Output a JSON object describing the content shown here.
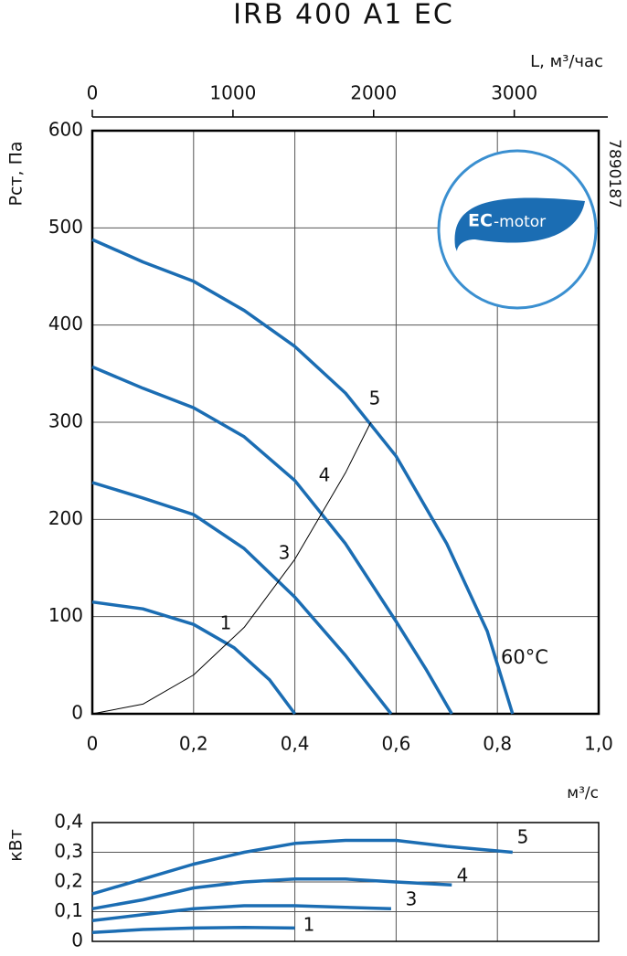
{
  "title": "IRB 400 A1 EC",
  "logo": [
    "EC",
    "-motor"
  ],
  "code": "7890187",
  "chart_data": [
    {
      "type": "line",
      "y_label": "Pст, Па",
      "x_label": "м³/с",
      "x2_label": "L, м³/час",
      "annotations": [
        "60°C"
      ],
      "xlim": [
        0,
        1.0
      ],
      "xticks": [
        0,
        {
          "value": 0.2,
          "label": "0,2"
        },
        {
          "value": 0.4,
          "label": "0,4"
        },
        {
          "value": 0.6,
          "label": "0,6"
        },
        {
          "value": 0.8,
          "label": "0,8"
        },
        {
          "value": 1.0,
          "label": "1,0"
        }
      ],
      "x2lim": [
        0,
        3600
      ],
      "x2ticks": [
        0,
        1000,
        2000,
        3000
      ],
      "ylim": [
        0,
        600
      ],
      "yticks": [
        0,
        100,
        200,
        300,
        400,
        500,
        600
      ],
      "grid": true,
      "series": [
        {
          "name": "1",
          "color": "#1b6db3",
          "x": [
            0,
            0.1,
            0.2,
            0.28,
            0.35,
            0.4
          ],
          "values": [
            115,
            108,
            92,
            68,
            35,
            0
          ]
        },
        {
          "name": "3",
          "color": "#1b6db3",
          "x": [
            0,
            0.1,
            0.2,
            0.3,
            0.4,
            0.5,
            0.59
          ],
          "values": [
            238,
            222,
            205,
            170,
            120,
            60,
            0
          ]
        },
        {
          "name": "4",
          "color": "#1b6db3",
          "x": [
            0,
            0.1,
            0.2,
            0.3,
            0.4,
            0.5,
            0.6,
            0.66,
            0.71
          ],
          "values": [
            357,
            335,
            315,
            285,
            240,
            175,
            95,
            45,
            0
          ]
        },
        {
          "name": "5",
          "color": "#1b6db3",
          "x": [
            0,
            0.1,
            0.2,
            0.3,
            0.4,
            0.5,
            0.6,
            0.7,
            0.78,
            0.83
          ],
          "values": [
            488,
            465,
            445,
            415,
            378,
            330,
            265,
            175,
            85,
            0
          ]
        },
        {
          "color": "#000000",
          "x": [
            0,
            0.1,
            0.2,
            0.3,
            0.4,
            0.5,
            0.55
          ],
          "values": [
            0,
            10,
            40,
            89,
            159,
            248,
            300
          ]
        }
      ]
    },
    {
      "type": "line",
      "y_label": "кВт",
      "xlim": [
        0,
        1.0
      ],
      "ylim": [
        0,
        0.4
      ],
      "yticks": [
        0,
        {
          "value": 0.1,
          "label": "0,1"
        },
        {
          "value": 0.2,
          "label": "0,2"
        },
        {
          "value": 0.3,
          "label": "0,3"
        },
        {
          "value": 0.4,
          "label": "0,4"
        }
      ],
      "xgrid": [
        0.2,
        0.4,
        0.6,
        0.8
      ],
      "grid": true,
      "series": [
        {
          "name": "1",
          "color": "#1b6db3",
          "x": [
            0,
            0.1,
            0.2,
            0.3,
            0.4
          ],
          "values": [
            0.03,
            0.04,
            0.045,
            0.047,
            0.045
          ]
        },
        {
          "name": "3",
          "color": "#1b6db3",
          "x": [
            0,
            0.1,
            0.2,
            0.3,
            0.4,
            0.59
          ],
          "values": [
            0.07,
            0.09,
            0.11,
            0.12,
            0.12,
            0.11
          ]
        },
        {
          "name": "4",
          "color": "#1b6db3",
          "x": [
            0,
            0.1,
            0.2,
            0.3,
            0.4,
            0.5,
            0.6,
            0.71
          ],
          "values": [
            0.11,
            0.14,
            0.18,
            0.2,
            0.21,
            0.21,
            0.2,
            0.19
          ]
        },
        {
          "name": "5",
          "color": "#1b6db3",
          "x": [
            0,
            0.1,
            0.2,
            0.3,
            0.4,
            0.5,
            0.6,
            0.7,
            0.83
          ],
          "values": [
            0.16,
            0.21,
            0.26,
            0.3,
            0.33,
            0.34,
            0.34,
            0.32,
            0.3
          ]
        }
      ]
    }
  ]
}
